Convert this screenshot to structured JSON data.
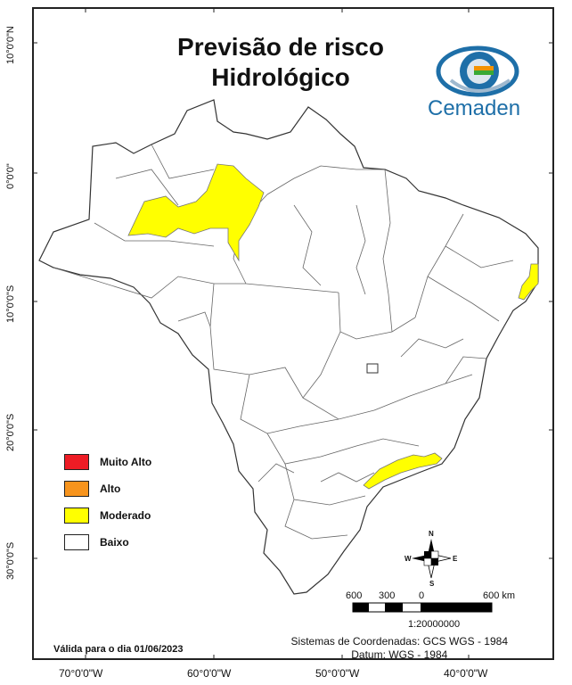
{
  "title": {
    "line1": "Previsão de risco",
    "line2": "Hidrológico"
  },
  "logo": {
    "text": "Cemaden",
    "icon": "cemaden-eye-logo-icon"
  },
  "latitude_labels": [
    "10°0'0\"N",
    "0°0'0\"",
    "10°0'0\"S",
    "20°0'0\"S",
    "30°0'0\"S"
  ],
  "longitude_labels": [
    "70°0'0\"W",
    "60°0'0\"W",
    "50°0'0\"W",
    "40°0'0\"W"
  ],
  "legend": [
    {
      "label": "Muito Alto",
      "color": "#ee1c25"
    },
    {
      "label": "Alto",
      "color": "#f7941d"
    },
    {
      "label": "Moderado",
      "color": "#ffff00"
    },
    {
      "label": "Baixo",
      "color": "#ffffff"
    }
  ],
  "scale": {
    "labels": [
      "600",
      "300",
      "0",
      "600 km"
    ],
    "ratio": "1:20000000"
  },
  "compass": {
    "n": "N",
    "s": "S",
    "e": "E",
    "w": "W"
  },
  "valid_for": {
    "prefix": "Válida para o dia ",
    "date": "01/06/2023"
  },
  "coordinate_system": {
    "line1": "Sistemas de Coordenadas: GCS WGS - 1984",
    "line2": "Datum: WGS - 1984"
  },
  "colors": {
    "moderate": "#ffff00",
    "border": "#555555",
    "logo_blue": "#1e6fa8"
  }
}
